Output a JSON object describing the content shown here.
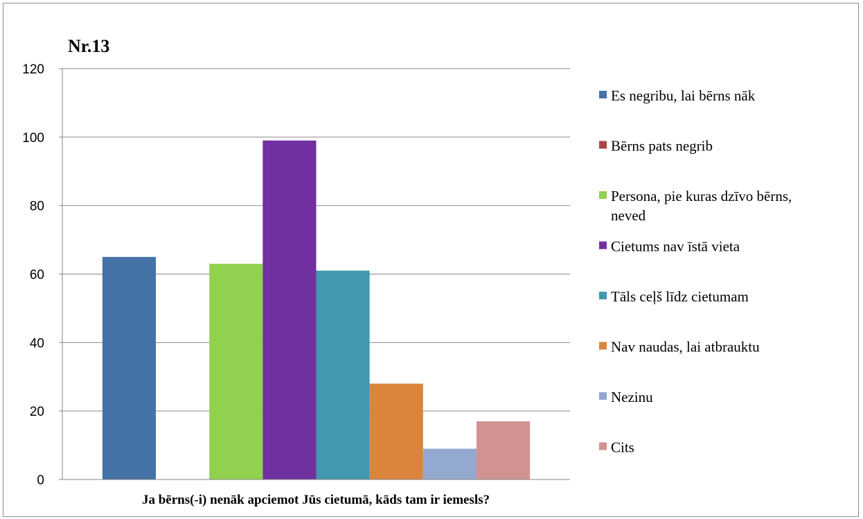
{
  "chart_data": {
    "type": "bar",
    "title": "Nr.13",
    "xlabel": "Ja bērns(-i) nenāk apciemot Jūs cietumā, kāds tam ir iemesls?",
    "ylabel": "",
    "ylim": [
      0,
      120
    ],
    "yticks": [
      "0",
      "20",
      "40",
      "60",
      "80",
      "100",
      "120"
    ],
    "grid": true,
    "legend_position": "right",
    "series": [
      {
        "name": "Es negribu, lai bērns nāk",
        "value": 65,
        "color": "#4572a7"
      },
      {
        "name": "Bērns pats negrib",
        "value": 0,
        "color": "#aa4643"
      },
      {
        "name": "Persona, pie kuras dzīvo bērns, neved",
        "value": 63,
        "color": "#92d050"
      },
      {
        "name": "Cietums nav īstā vieta",
        "value": 99,
        "color": "#7030a0"
      },
      {
        "name": "Tāls ceļš līdz cietumam",
        "value": 61,
        "color": "#4198af"
      },
      {
        "name": "Nav naudas, lai atbrauktu",
        "value": 28,
        "color": "#db843d"
      },
      {
        "name": "Nezinu",
        "value": 9,
        "color": "#93a9cf"
      },
      {
        "name": "Cits",
        "value": 17,
        "color": "#d19392"
      }
    ]
  }
}
